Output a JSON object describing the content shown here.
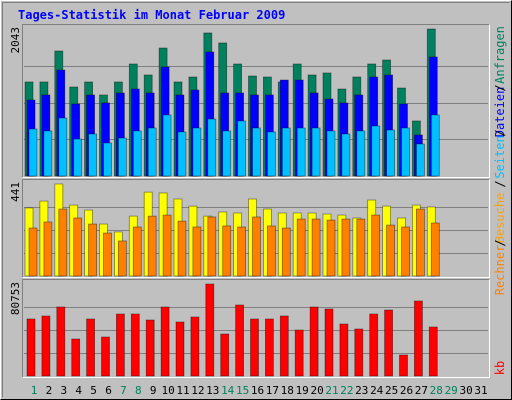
{
  "chart_data": {
    "type": "bar",
    "title": "Tages-Statistik im Monat Februar 2009",
    "categories": [
      1,
      2,
      3,
      4,
      5,
      6,
      7,
      8,
      9,
      10,
      11,
      12,
      13,
      14,
      15,
      16,
      17,
      18,
      19,
      20,
      21,
      22,
      23,
      24,
      25,
      26,
      27,
      28,
      29,
      30,
      31
    ],
    "category_colors": [
      "#00805c",
      "#000000",
      "#000000",
      "#000000",
      "#000000",
      "#000000",
      "#00805c",
      "#00805c",
      "#000000",
      "#000000",
      "#000000",
      "#000000",
      "#000000",
      "#00805c",
      "#00805c",
      "#000000",
      "#000000",
      "#000000",
      "#000000",
      "#000000",
      "#00805c",
      "#00805c",
      "#000000",
      "#000000",
      "#000000",
      "#000000",
      "#000000",
      "#00805c",
      "#00805c",
      "#000000",
      "#000000"
    ],
    "legend_separator": "/",
    "panels": [
      {
        "ylim": [
          0,
          2043
        ],
        "yticks": [
          2043
        ],
        "series": [
          {
            "name": "Anfragen",
            "color": "#00805c",
            "values": [
              1307,
              1307,
              1737,
              1237,
              1307,
              1126,
              1307,
              1557,
              1404,
              1779,
              1307,
              1376,
              1988,
              1849,
              1557,
              1390,
              1376,
              1307,
              1557,
              1404,
              1432,
              1209,
              1376,
              1557,
              1612,
              1223,
              765,
              2043,
              null,
              null,
              null
            ]
          },
          {
            "name": "Dateien",
            "color": "#0000ff",
            "values": [
              1056,
              1126,
              1473,
              1001,
              1126,
              1015,
              1154,
              1209,
              1154,
              1515,
              1126,
              1195,
              1724,
              1154,
              1154,
              1126,
              1126,
              1334,
              1334,
              1154,
              1070,
              1015,
              1126,
              1376,
              1404,
              1001,
              570,
              1654,
              null,
              null,
              null
            ]
          },
          {
            "name": "Seiten",
            "color": "#00c0ff",
            "values": [
              653,
              626,
              806,
              514,
              584,
              459,
              528,
              626,
              667,
              848,
              612,
              667,
              792,
              626,
              765,
              667,
              612,
              667,
              667,
              667,
              626,
              584,
              626,
              695,
              639,
              667,
              445,
              848,
              null,
              null,
              null
            ]
          }
        ]
      },
      {
        "ylim": [
          0,
          441
        ],
        "yticks": [
          441
        ],
        "series": [
          {
            "name": "Besuche",
            "color": "#ffff00",
            "values": [
              326,
              359,
              441,
              340,
              316,
              249,
              211,
              287,
              402,
              398,
              369,
              335,
              287,
              307,
              302,
              369,
              321,
              302,
              302,
              302,
              297,
              292,
              278,
              364,
              335,
              278,
              340,
              331,
              null,
              null,
              null
            ]
          },
          {
            "name": "Rechner",
            "color": "#ff8000",
            "values": [
              230,
              259,
              321,
              278,
              249,
              206,
              168,
              235,
              287,
              292,
              263,
              235,
              283,
              240,
              235,
              283,
              240,
              230,
              273,
              273,
              268,
              273,
              273,
              292,
              244,
              235,
              321,
              254,
              null,
              null,
              null
            ]
          }
        ]
      },
      {
        "ylim": [
          0,
          80753
        ],
        "yticks": [
          80753
        ],
        "series": [
          {
            "name": "kb",
            "color": "#ff0000",
            "values": [
              50035,
              52668,
              60568,
              32479,
              50035,
              34234,
              54424,
              54424,
              49157,
              60568,
              47401,
              51790,
              80753,
              36868,
              62324,
              50035,
              50035,
              52668,
              40379,
              60568,
              58813,
              45646,
              41257,
              54424,
              57935,
              18434,
              65835,
              43012,
              null,
              null,
              null
            ]
          }
        ]
      }
    ]
  }
}
